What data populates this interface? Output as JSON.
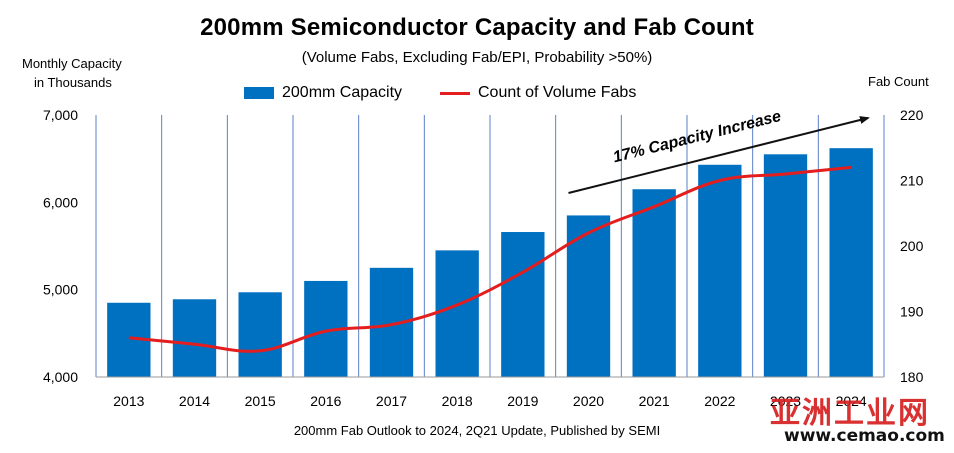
{
  "chart_data": {
    "type": "bar",
    "title": "200mm Semiconductor Capacity and Fab Count",
    "subtitle": "(Volume Fabs, Excluding Fab/EPI, Probability >50%)",
    "ylabel": "Monthly Capacity\nin Thousands",
    "ylabel_lines": [
      "Monthly Capacity",
      "in Thousands"
    ],
    "y2label": "Fab Count",
    "categories": [
      "2013",
      "2014",
      "2015",
      "2016",
      "2017",
      "2018",
      "2019",
      "2020",
      "2021",
      "2022",
      "2023",
      "2024"
    ],
    "ylim": [
      4000,
      7000
    ],
    "yticks": [
      "4,000",
      "5,000",
      "6,000",
      "7,000"
    ],
    "y2lim": [
      180,
      220
    ],
    "y2ticks": [
      "180",
      "190",
      "200",
      "210",
      "220"
    ],
    "series": [
      {
        "name": "200mm Capacity",
        "type": "bar",
        "axis": "left",
        "color": "#0070c0",
        "values": [
          4850,
          4890,
          4970,
          5100,
          5250,
          5450,
          5660,
          5850,
          6150,
          6430,
          6550,
          6620
        ]
      },
      {
        "name": "Count of Volume Fabs",
        "type": "line",
        "axis": "right",
        "color": "#e41e1e",
        "values": [
          186,
          185,
          184,
          187,
          188,
          191,
          196,
          202,
          206,
          210,
          211,
          212
        ]
      }
    ],
    "annotation": "17% Capacity Increase",
    "grid": "vertical",
    "legend_position": "top"
  },
  "source_note": "200mm Fab Outlook to 2024, 2Q21 Update, Published by SEMI",
  "watermark": {
    "brand": "亚洲工业网",
    "url": "www.cemao.com"
  }
}
